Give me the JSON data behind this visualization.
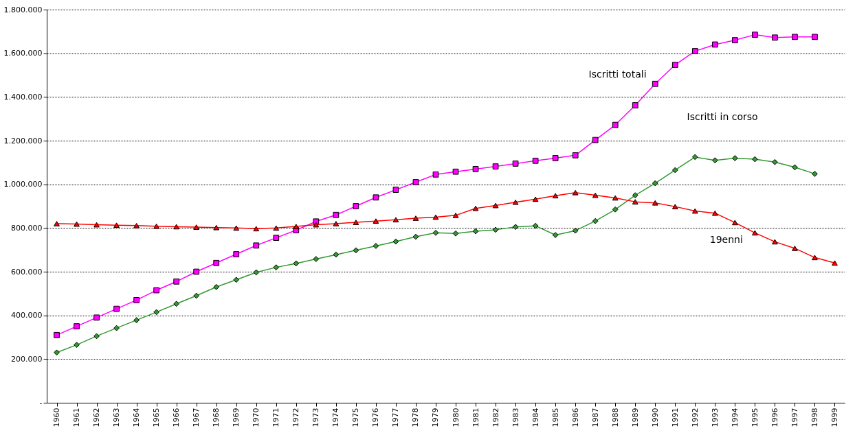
{
  "chart_data": {
    "type": "line",
    "categories": [
      "1960",
      "1961",
      "1962",
      "1963",
      "1964",
      "1965",
      "1966",
      "1967",
      "1968",
      "1969",
      "1970",
      "1971",
      "1972",
      "1973",
      "1974",
      "1975",
      "1976",
      "1977",
      "1978",
      "1979",
      "1980",
      "1981",
      "1982",
      "1983",
      "1984",
      "1985",
      "1986",
      "1987",
      "1988",
      "1989",
      "1990",
      "1991",
      "1992",
      "1993",
      "1994",
      "1995",
      "1996",
      "1997",
      "1998",
      "1999"
    ],
    "series": [
      {
        "color": "#ff00ff",
        "marker": "square",
        "values": [
          310000,
          350000,
          390000,
          430000,
          470000,
          515000,
          555000,
          600000,
          640000,
          680000,
          720000,
          755000,
          790000,
          830000,
          860000,
          900000,
          940000,
          975000,
          1010000,
          1045000,
          1058000,
          1070000,
          1082000,
          1095000,
          1108000,
          1120000,
          1133000,
          1203000,
          1272000,
          1362000,
          1460000,
          1547000,
          1610000,
          1640000,
          1660000,
          1685000,
          1672000,
          1675000,
          1675000,
          null
        ]
      },
      {
        "color": "#339933",
        "marker": "diamond",
        "values": [
          230000,
          265000,
          305000,
          342000,
          378000,
          415000,
          453000,
          490000,
          530000,
          563000,
          597000,
          620000,
          638000,
          658000,
          678000,
          698000,
          718000,
          738000,
          760000,
          778000,
          775000,
          785000,
          792000,
          805000,
          810000,
          768000,
          788000,
          832000,
          885000,
          950000,
          1005000,
          1065000,
          1125000,
          1110000,
          1120000,
          1115000,
          1102000,
          1078000,
          1048000,
          null
        ]
      },
      {
        "color": "#ff0000",
        "marker": "triangle",
        "values": [
          820000,
          818000,
          815000,
          813000,
          811000,
          808000,
          806000,
          804000,
          802000,
          800000,
          797000,
          800000,
          807000,
          815000,
          820000,
          826000,
          832000,
          838000,
          845000,
          850000,
          858000,
          890000,
          903000,
          918000,
          932000,
          948000,
          962000,
          950000,
          938000,
          920000,
          915000,
          898000,
          878000,
          868000,
          825000,
          778000,
          737000,
          707000,
          665000,
          640000
        ]
      }
    ],
    "ylim": [
      0,
      1800000
    ],
    "yticks": [
      {
        "value": 0,
        "label": "-"
      },
      {
        "value": 200000,
        "label": "200.000"
      },
      {
        "value": 400000,
        "label": "400.000"
      },
      {
        "value": 600000,
        "label": "600.000"
      },
      {
        "value": 800000,
        "label": "800.000"
      },
      {
        "value": 1000000,
        "label": "1.000.000"
      },
      {
        "value": 1200000,
        "label": "1.200.000"
      },
      {
        "value": 1400000,
        "label": "1.400.000"
      },
      {
        "value": 1600000,
        "label": "1.600.000"
      },
      {
        "value": 1800000,
        "label": "1.800.000"
      }
    ],
    "grid": "y",
    "annotations": [
      "Iscritti totali",
      "Iscritti in corso",
      "19enni"
    ]
  }
}
